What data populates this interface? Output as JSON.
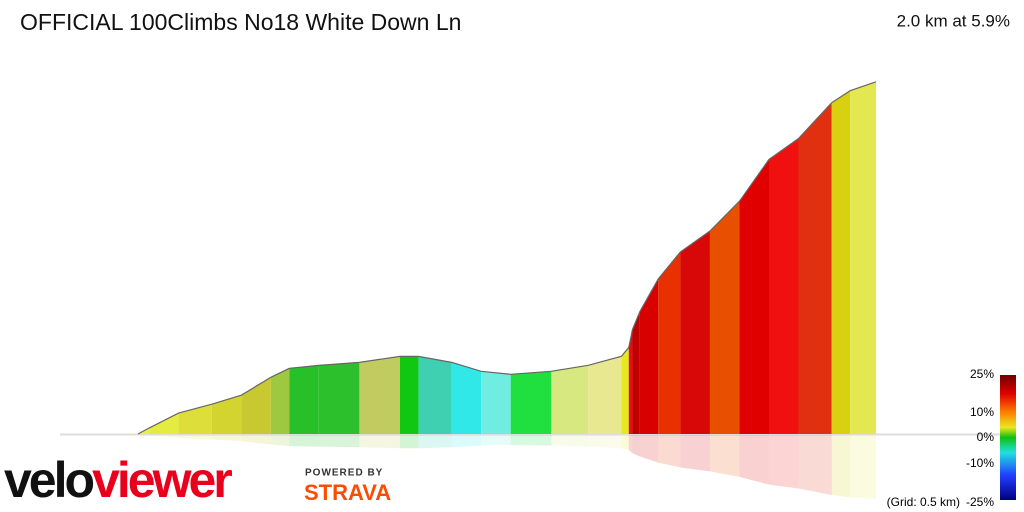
{
  "header": {
    "title": "OFFICIAL 100Climbs No18 White Down Ln",
    "summary": "2.0 km at 5.9%"
  },
  "profile": {
    "distance_km": [
      0,
      0.03,
      0.11,
      0.2,
      0.28,
      0.36,
      0.41,
      0.49,
      0.6,
      0.71,
      0.76,
      0.85,
      0.93,
      1.01,
      1.12,
      1.22,
      1.31,
      1.33,
      1.34,
      1.36,
      1.41,
      1.47,
      1.55,
      1.63,
      1.71,
      1.79,
      1.88,
      1.93,
      2.0
    ],
    "elevation": [
      0,
      2,
      7,
      10,
      13,
      19,
      22,
      23,
      24,
      26,
      26,
      24,
      21,
      20,
      21,
      23,
      26,
      29,
      35,
      41,
      52,
      61,
      68,
      78,
      92,
      99,
      111,
      115,
      118
    ],
    "colors": [
      "#e8f04a",
      "#e4ec40",
      "#dede3a",
      "#d4d430",
      "#c8c830",
      "#9ec840",
      "#28c028",
      "#2cc02c",
      "#c0cc60",
      "#10c810",
      "#3ed0b0",
      "#30e8e8",
      "#70ece0",
      "#20e040",
      "#d8e880",
      "#e8e890",
      "#e8e820",
      "#e01010",
      "#c00000",
      "#d80000",
      "#e83000",
      "#d80808",
      "#e85000",
      "#e00000",
      "#f01010",
      "#e03010",
      "#d8d010",
      "#e4e850"
    ]
  },
  "legend": {
    "labels": [
      "25%",
      "10%",
      "0%",
      "-10%",
      "-25%"
    ],
    "grid_note": "(Grid: 0.5 km)"
  },
  "logo": {
    "part1": "velo",
    "part2": "viewer",
    "powered": "POWERED BY",
    "strava": "STRAVA"
  }
}
